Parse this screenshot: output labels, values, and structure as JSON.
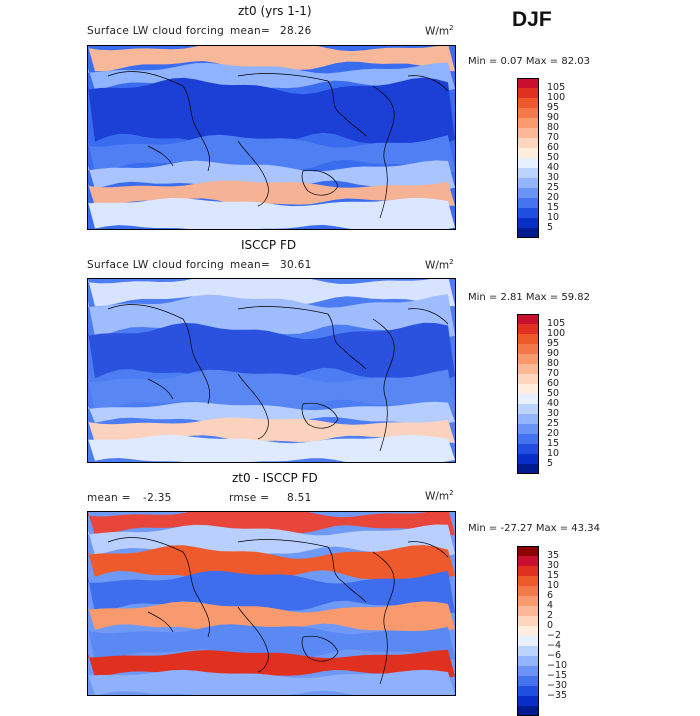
{
  "season": "DJF",
  "panels": [
    {
      "title": "zt0 (yrs 1-1)",
      "field": "Surface LW cloud forcing",
      "stat1_label": "mean=",
      "stat1_value": "28.26",
      "stat2_label": "",
      "stat2_value": "",
      "units": "W/m",
      "units_sup": "2",
      "minmax": "Min =   0.07 Max =  82.03",
      "legend_colors": [
        "#c8102e",
        "#e03020",
        "#ef5a2c",
        "#f4794a",
        "#f99a6e",
        "#fbb896",
        "#fdd6bd",
        "#ffeedd",
        "#e6f0ff",
        "#bcd3ff",
        "#93b5ff",
        "#6a93f5",
        "#4373ee",
        "#1f4ee0",
        "#0a2fc8",
        "#001a90"
      ],
      "legend_labels": [
        "105",
        "100",
        "95",
        "90",
        "80",
        "70",
        "60",
        "50",
        "40",
        "30",
        "25",
        "20",
        "15",
        "10",
        "5"
      ]
    },
    {
      "title": "ISCCP FD",
      "field": "Surface LW cloud forcing",
      "stat1_label": "mean=",
      "stat1_value": "30.61",
      "stat2_label": "",
      "stat2_value": "",
      "units": "W/m",
      "units_sup": "2",
      "minmax": "Min =   2.81 Max =  59.82",
      "legend_colors": [
        "#c8102e",
        "#e03020",
        "#ef5a2c",
        "#f4794a",
        "#f99a6e",
        "#fbb896",
        "#fdd6bd",
        "#ffeedd",
        "#e6f0ff",
        "#bcd3ff",
        "#93b5ff",
        "#6a93f5",
        "#4373ee",
        "#1f4ee0",
        "#0a2fc8",
        "#001a90"
      ],
      "legend_labels": [
        "105",
        "100",
        "95",
        "90",
        "80",
        "70",
        "60",
        "50",
        "40",
        "30",
        "25",
        "20",
        "15",
        "10",
        "5"
      ]
    },
    {
      "title": "zt0 - ISCCP FD",
      "field": "",
      "stat1_label": "mean =",
      "stat1_value": "-2.35",
      "stat2_label": "rmse =",
      "stat2_value": "8.51",
      "units": "W/m",
      "units_sup": "2",
      "minmax": "Min = -27.27 Max =  43.34",
      "legend_colors": [
        "#8b0000",
        "#c8102e",
        "#e03020",
        "#ef5a2c",
        "#f4794a",
        "#f99a6e",
        "#fbb896",
        "#fdd6bd",
        "#ffeedd",
        "#e6f0ff",
        "#bcd3ff",
        "#93b5ff",
        "#6a93f5",
        "#4373ee",
        "#1f4ee0",
        "#0a2fc8",
        "#001a90"
      ],
      "legend_labels": [
        "35",
        "30",
        "15",
        "10",
        "6",
        "4",
        "2",
        "0",
        "−2",
        "−4",
        "−6",
        "−10",
        "−15",
        "−30",
        "−35"
      ]
    }
  ]
}
